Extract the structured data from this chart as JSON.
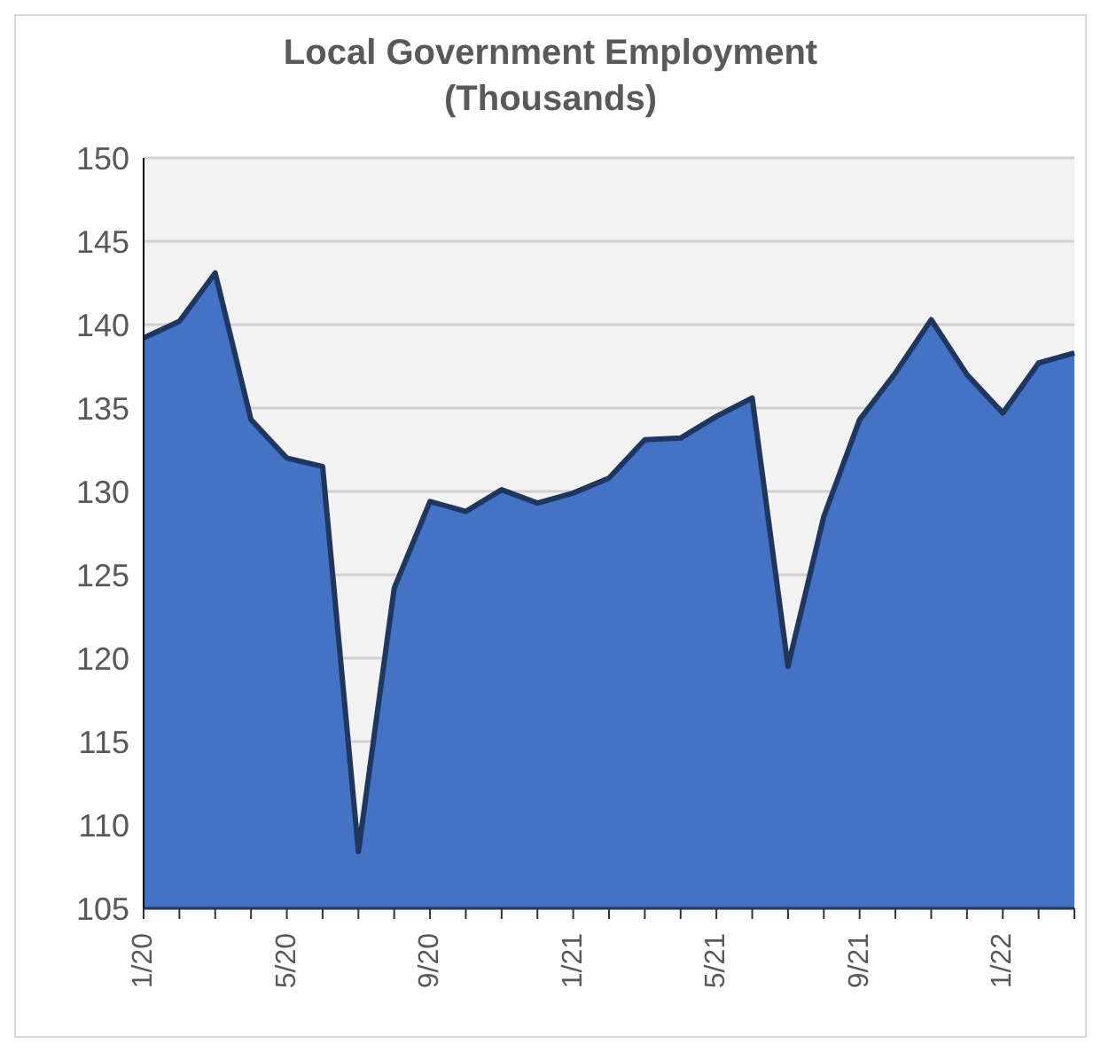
{
  "chart_data": {
    "type": "area",
    "title": "Local Government Employment (Thousands)",
    "categories": [
      "1/20",
      null,
      null,
      null,
      "5/20",
      null,
      null,
      null,
      "9/20",
      null,
      null,
      null,
      "1/21",
      null,
      null,
      null,
      "5/21",
      null,
      null,
      null,
      "9/21",
      null,
      null,
      null,
      "1/22",
      null,
      null
    ],
    "series": [
      {
        "color": "#4472c4",
        "values": [
          139.2,
          140.2,
          143.1,
          134.3,
          132.0,
          131.5,
          108.4,
          124.2,
          129.4,
          128.8,
          130.1,
          129.3,
          129.9,
          130.8,
          133.1,
          133.2,
          134.5,
          135.6,
          119.5,
          128.5,
          134.3,
          137.1,
          140.3,
          137.0,
          134.7,
          137.7,
          138.3
        ]
      }
    ],
    "ylim": [
      105,
      150
    ],
    "yticks": [
      105,
      110,
      115,
      120,
      125,
      130,
      135,
      140,
      145,
      150
    ],
    "grid": "y",
    "legend": false
  }
}
